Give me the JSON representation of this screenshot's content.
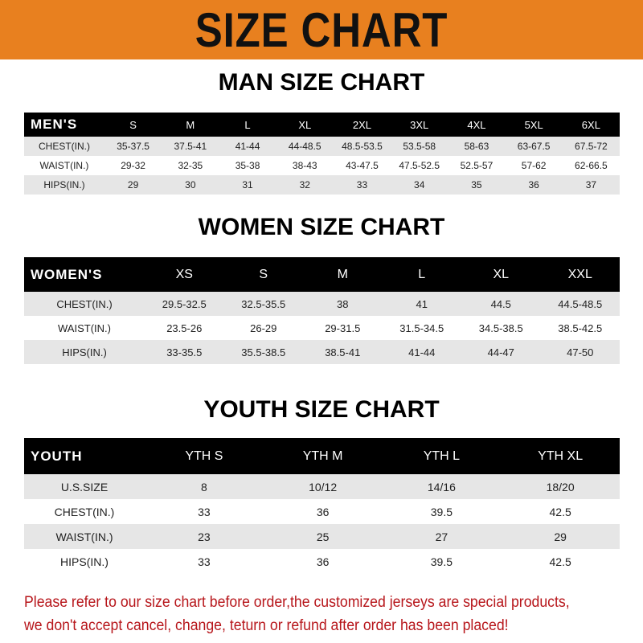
{
  "banner": "SIZE CHART",
  "colors": {
    "banner": "#e8801f",
    "header_row": "#000000",
    "stripe": "#e6e6e6",
    "note": "#b7161b"
  },
  "men": {
    "title": "MAN SIZE CHART",
    "headers": [
      "MEN'S",
      "S",
      "M",
      "L",
      "XL",
      "2XL",
      "3XL",
      "4XL",
      "5XL",
      "6XL"
    ],
    "rows": [
      [
        "CHEST(IN.)",
        "35-37.5",
        "37.5-41",
        "41-44",
        "44-48.5",
        "48.5-53.5",
        "53.5-58",
        "58-63",
        "63-67.5",
        "67.5-72"
      ],
      [
        "WAIST(IN.)",
        "29-32",
        "32-35",
        "35-38",
        "38-43",
        "43-47.5",
        "47.5-52.5",
        "52.5-57",
        "57-62",
        "62-66.5"
      ],
      [
        "HIPS(IN.)",
        "29",
        "30",
        "31",
        "32",
        "33",
        "34",
        "35",
        "36",
        "37"
      ]
    ]
  },
  "women": {
    "title": "WOMEN SIZE CHART",
    "headers": [
      "WOMEN'S",
      "XS",
      "S",
      "M",
      "L",
      "XL",
      "XXL"
    ],
    "rows": [
      [
        "CHEST(IN.)",
        "29.5-32.5",
        "32.5-35.5",
        "38",
        "41",
        "44.5",
        "44.5-48.5"
      ],
      [
        "WAIST(IN.)",
        "23.5-26",
        "26-29",
        "29-31.5",
        "31.5-34.5",
        "34.5-38.5",
        "38.5-42.5"
      ],
      [
        "HIPS(IN.)",
        "33-35.5",
        "35.5-38.5",
        "38.5-41",
        "41-44",
        "44-47",
        "47-50"
      ]
    ]
  },
  "youth": {
    "title": "YOUTH SIZE CHART",
    "headers": [
      "YOUTH",
      "YTH S",
      "YTH M",
      "YTH L",
      "YTH XL"
    ],
    "rows": [
      [
        "U.S.SIZE",
        "8",
        "10/12",
        "14/16",
        "18/20"
      ],
      [
        "CHEST(IN.)",
        "33",
        "36",
        "39.5",
        "42.5"
      ],
      [
        "WAIST(IN.)",
        "23",
        "25",
        "27",
        "29"
      ],
      [
        "HIPS(IN.)",
        "33",
        "36",
        "39.5",
        "42.5"
      ]
    ]
  },
  "note": [
    "Please refer to our size chart before order,the customized jerseys are special products,",
    "we don't accept cancel, change, teturn or refund after order has been placed!"
  ]
}
